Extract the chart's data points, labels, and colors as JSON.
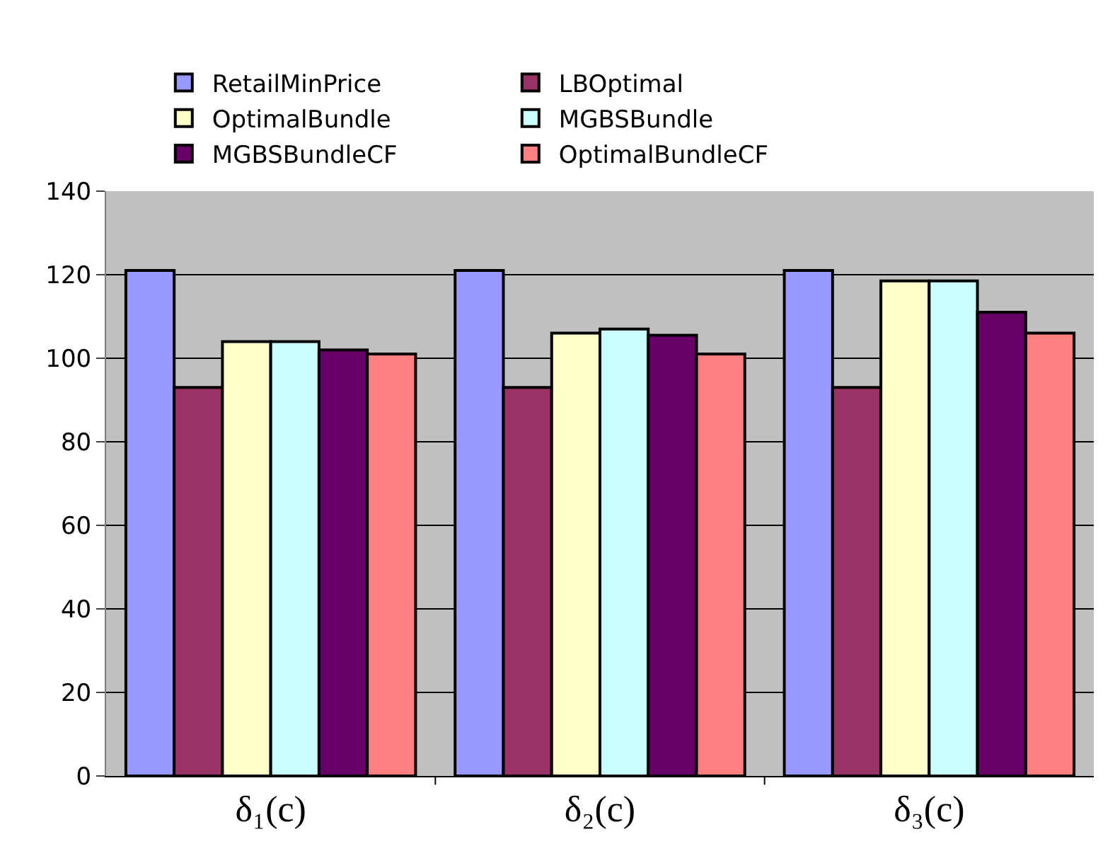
{
  "chart_data": {
    "type": "bar",
    "categories": [
      "δ₁(c)",
      "δ₂(c)",
      "δ₃(c)"
    ],
    "series": [
      {
        "name": "RetailMinPrice",
        "color": "#9999ff",
        "values": [
          121,
          121,
          121
        ]
      },
      {
        "name": "LBOptimal",
        "color": "#993366",
        "values": [
          93,
          93,
          93
        ]
      },
      {
        "name": "OptimalBundle",
        "color": "#ffffcc",
        "values": [
          104,
          106,
          118.5
        ]
      },
      {
        "name": "MGBSBundle",
        "color": "#ccffff",
        "values": [
          104,
          107,
          118.5
        ]
      },
      {
        "name": "MGBSBundleCF",
        "color": "#660066",
        "values": [
          102,
          105.5,
          111
        ]
      },
      {
        "name": "OptimalBundleCF",
        "color": "#ff8080",
        "values": [
          101,
          101,
          106
        ]
      }
    ],
    "ylim": [
      0,
      140
    ],
    "yticks": [
      0,
      20,
      40,
      60,
      80,
      100,
      120,
      140
    ],
    "grid": "y",
    "legend": "top"
  }
}
